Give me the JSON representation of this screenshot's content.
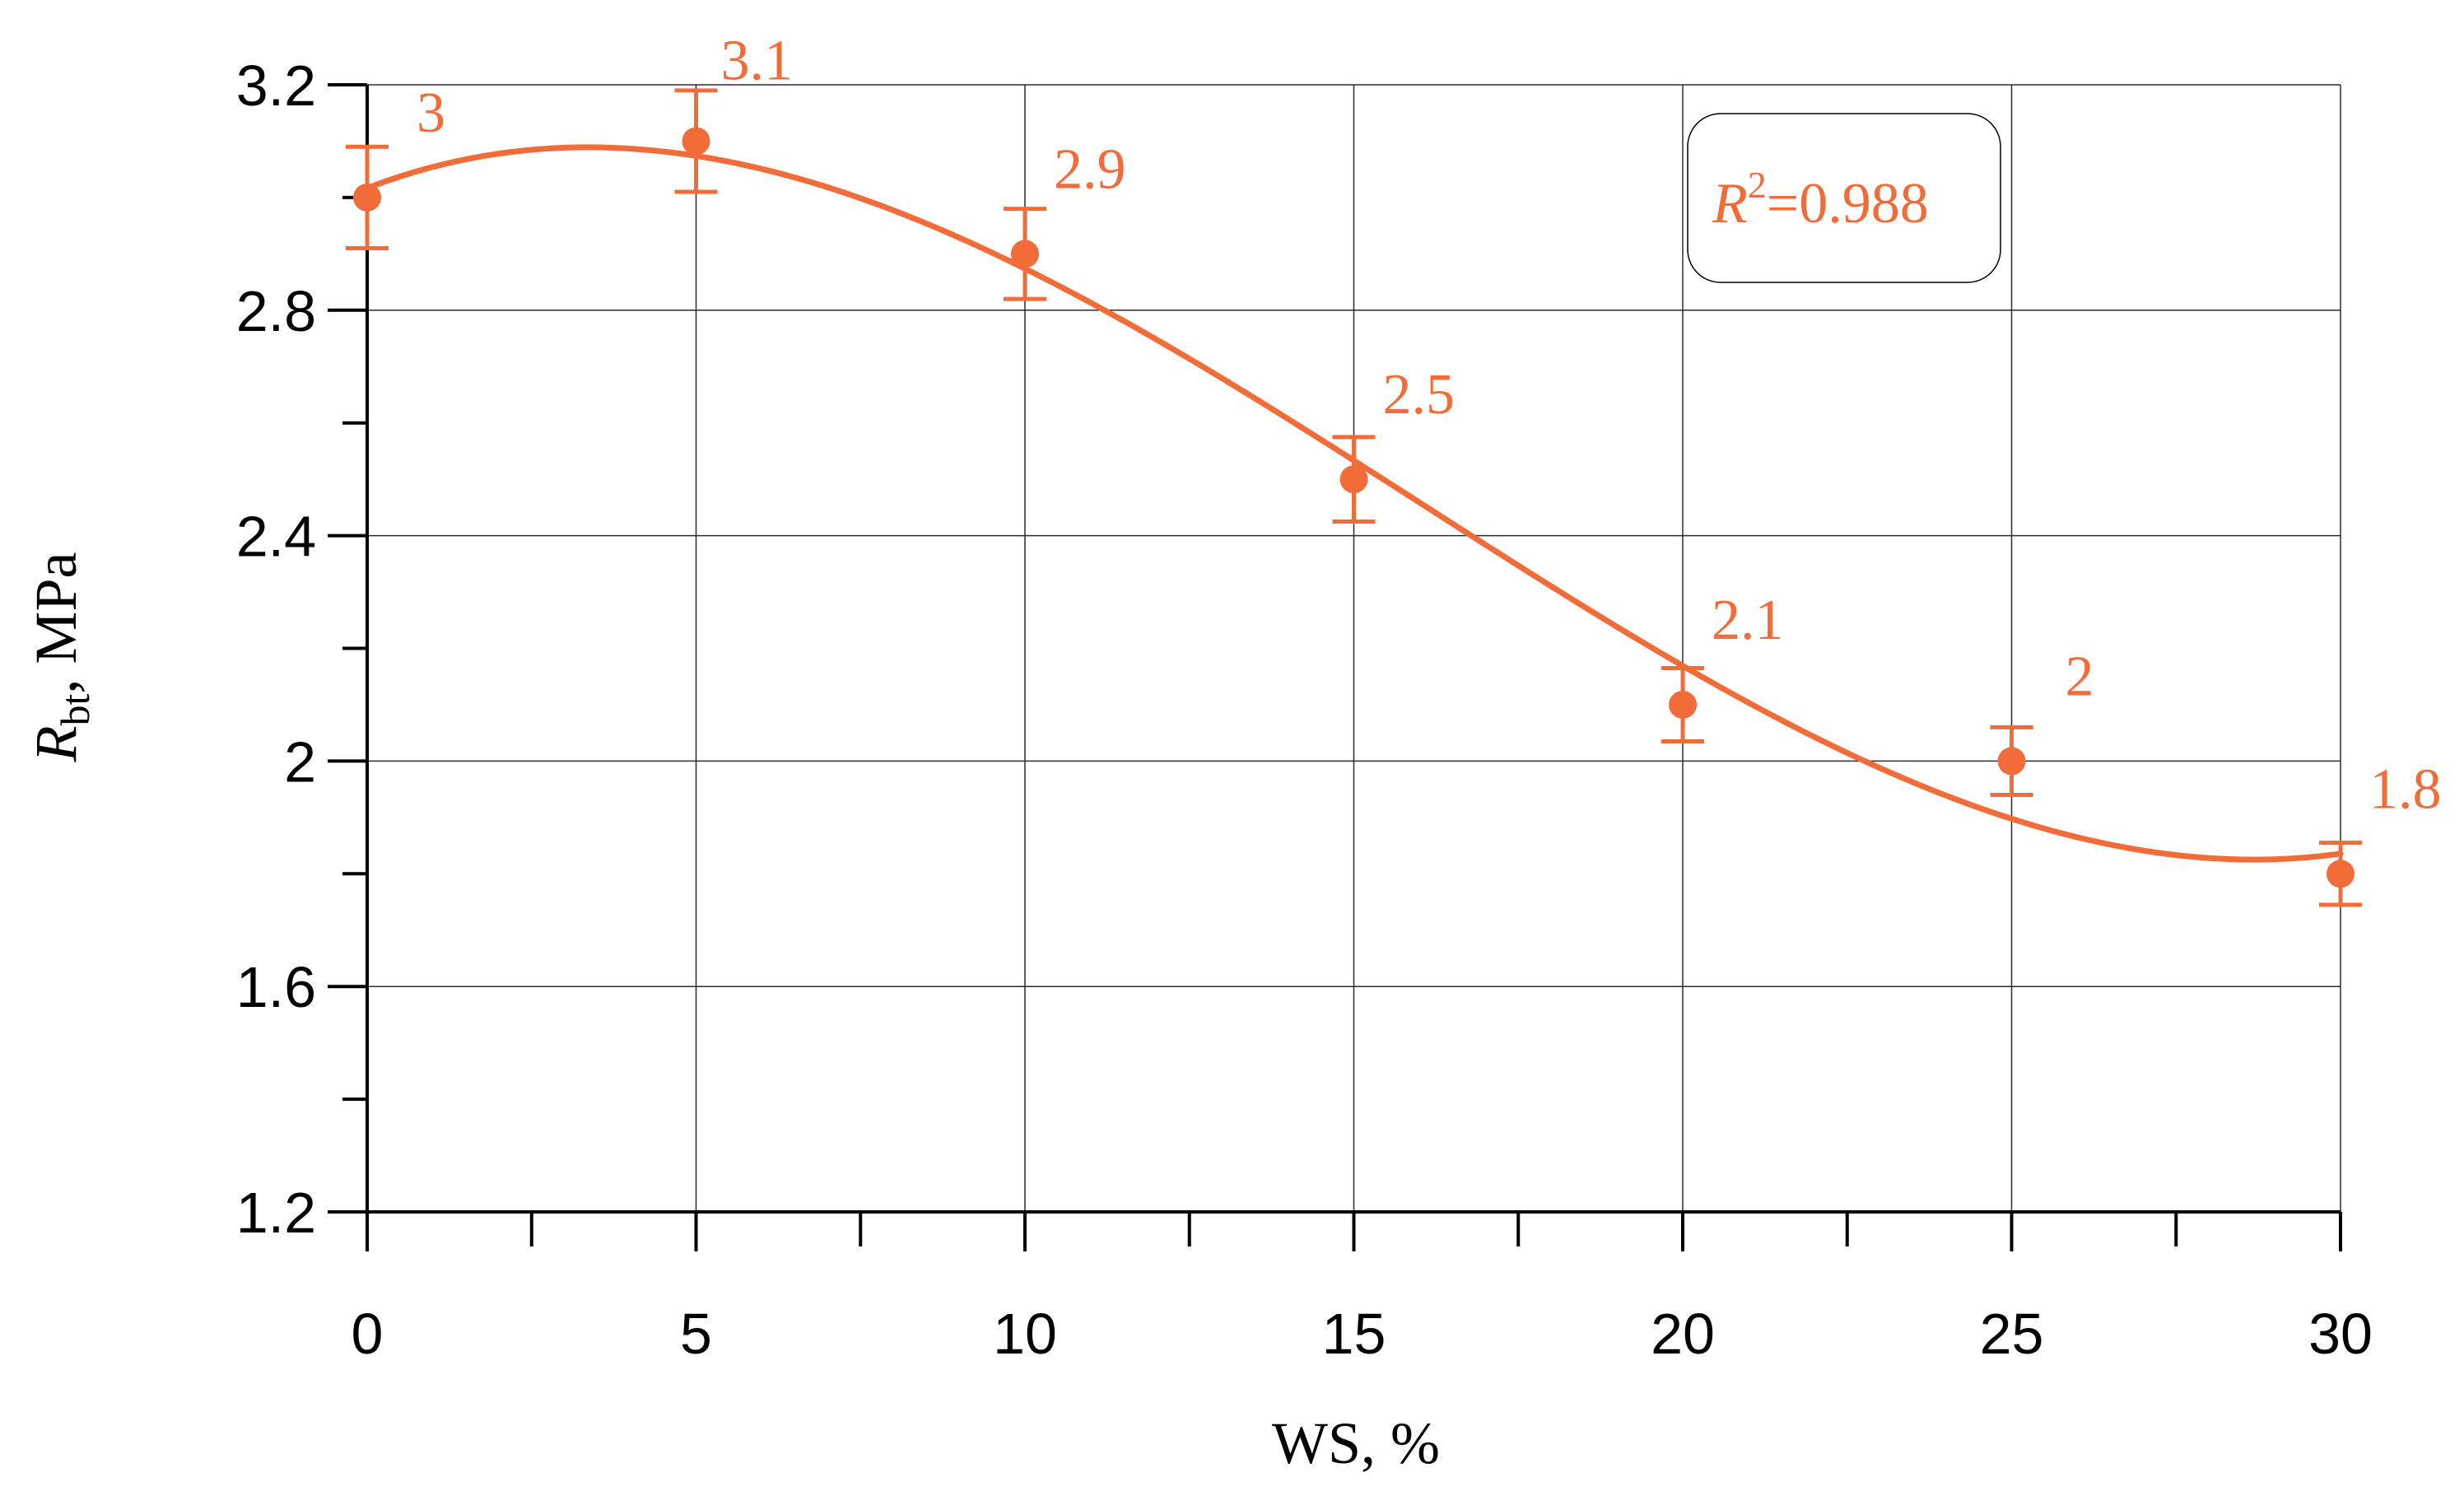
{
  "colors": {
    "series": "#f26c3a",
    "axis": "#000000",
    "grid": "#2b2b2b",
    "background": "#ffffff"
  },
  "annotation": {
    "r2_symbol": "R",
    "r2_exponent": "2",
    "r2_value": "=0.988"
  },
  "chart_data": {
    "type": "scatter",
    "title": "",
    "xlabel": "WS, %",
    "ylabel_main": "R",
    "ylabel_sub": "bt",
    "ylabel_unit": ", MPa",
    "xlim": [
      0,
      30
    ],
    "ylim": [
      1.2,
      3.2
    ],
    "xticks": [
      0,
      5,
      10,
      15,
      20,
      25,
      30
    ],
    "xtick_labels": [
      "0",
      "5",
      "10",
      "15",
      "20",
      "25",
      "30"
    ],
    "yticks": [
      1.2,
      1.6,
      2.0,
      2.4,
      2.8,
      3.2
    ],
    "ytick_labels": [
      "1.2",
      "1.6",
      "2",
      "2.4",
      "2.8",
      "3.2"
    ],
    "grid": true,
    "series": [
      {
        "x": [
          0,
          5,
          10,
          15,
          20,
          25,
          30
        ],
        "y": [
          3.0,
          3.1,
          2.9,
          2.5,
          2.1,
          2.0,
          1.8
        ],
        "error": [
          0.09,
          0.09,
          0.08,
          0.075,
          0.065,
          0.06,
          0.055
        ],
        "labels": [
          "3",
          "3.1",
          "2.9",
          "2.5",
          "2.1",
          "2",
          "1.8"
        ]
      }
    ],
    "fit": {
      "type": "polynomial",
      "degree": 3,
      "r2": 0.988
    }
  }
}
